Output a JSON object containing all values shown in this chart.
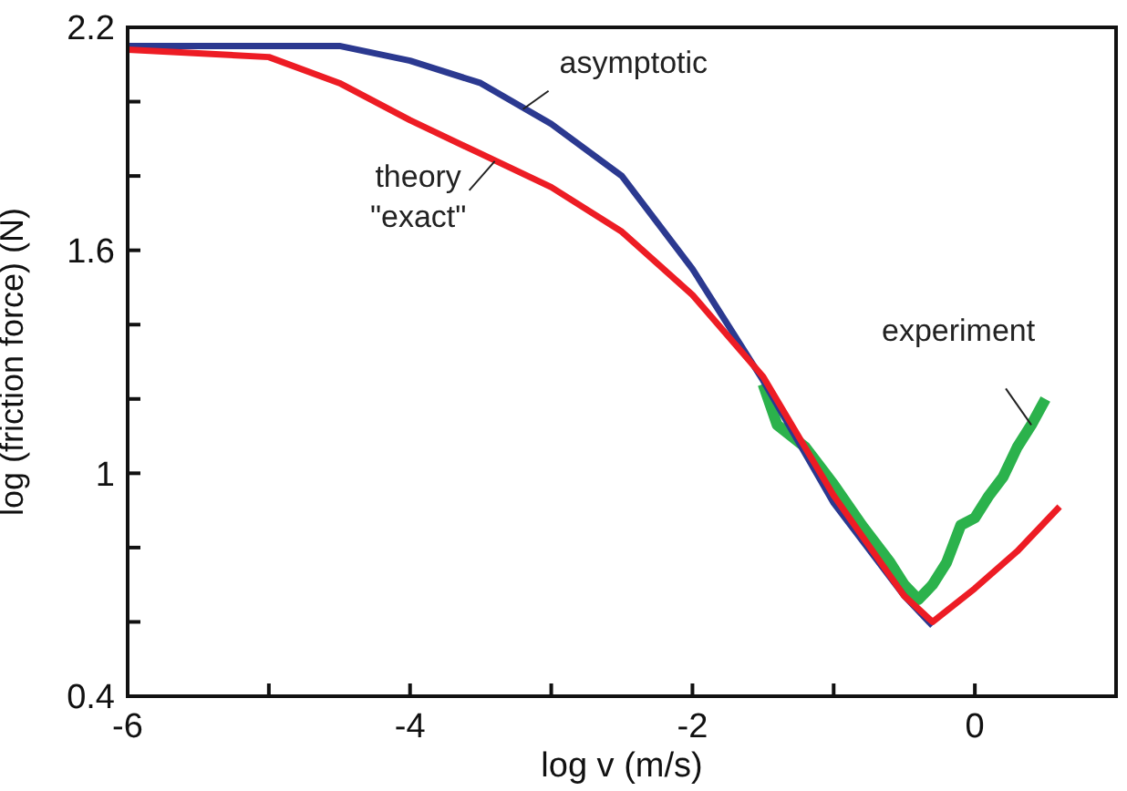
{
  "chart_data": {
    "type": "line",
    "xlabel": "log v (m/s)",
    "ylabel": "log (friction force) (N)",
    "xlim": [
      -6,
      1
    ],
    "ylim": [
      0.4,
      2.2
    ],
    "xticks": [
      -6,
      {
        "value": -5,
        "label": null
      },
      -4,
      {
        "value": -3,
        "label": null
      },
      -2,
      {
        "value": -1,
        "label": null
      },
      0
    ],
    "yticks": [
      0.4,
      {
        "value": 0.6,
        "label": null
      },
      {
        "value": 0.8,
        "label": null
      },
      1,
      {
        "value": 1.2,
        "label": null
      },
      {
        "value": 1.4,
        "label": null
      },
      1.6,
      {
        "value": 1.8,
        "label": null
      },
      {
        "value": 2.0,
        "label": null
      },
      2.2
    ],
    "grid": false,
    "legend": false,
    "marker": "none",
    "line_style": "solid",
    "series": [
      {
        "color": "#2bb24c",
        "x": [
          -1.5,
          -1.4,
          -1.2,
          -1.0,
          -0.8,
          -0.6,
          -0.5,
          -0.4,
          -0.3,
          -0.2,
          -0.1,
          0,
          0.1,
          0.2,
          0.3,
          0.4,
          0.5
        ],
        "values": [
          1.24,
          1.13,
          1.07,
          0.97,
          0.86,
          0.76,
          0.7,
          0.66,
          0.7,
          0.76,
          0.86,
          0.88,
          0.94,
          0.99,
          1.07,
          1.13,
          1.2
        ]
      },
      {
        "color": "#2b3990",
        "x": [
          -6,
          -5,
          -4.5,
          -4,
          -3.5,
          -3,
          -2.5,
          -2,
          -1.5,
          -1,
          -0.5,
          -0.3
        ],
        "values": [
          2.15,
          2.15,
          2.15,
          2.11,
          2.05,
          1.94,
          1.8,
          1.55,
          1.25,
          0.92,
          0.67,
          0.59
        ]
      },
      {
        "color": "#ed1c24",
        "x": [
          -6,
          -5,
          -4.5,
          -4,
          -3.5,
          -3,
          -2.5,
          -2,
          -1.5,
          -1,
          -0.5,
          -0.3,
          0,
          0.3,
          0.6
        ],
        "values": [
          2.14,
          2.12,
          2.05,
          1.95,
          1.86,
          1.77,
          1.65,
          1.48,
          1.26,
          0.94,
          0.67,
          0.6,
          0.69,
          0.79,
          0.91
        ]
      }
    ],
    "annotations": [
      {
        "text": "asymptotic",
        "x": -3.2,
        "y": 1.98
      },
      {
        "text": "theory\n\"exact\"",
        "x": -3.4,
        "y": 1.84
      },
      {
        "text": "experiment",
        "x": 0.4,
        "y": 1.13
      }
    ]
  }
}
